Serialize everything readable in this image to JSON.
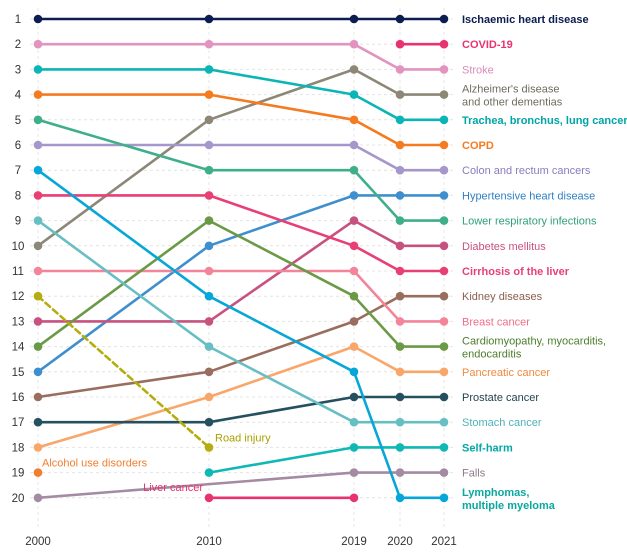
{
  "chart_data": {
    "type": "line",
    "chart_kind": "bump",
    "x": [
      2000,
      2010,
      2019,
      2020,
      2021
    ],
    "x_tick_labels": [
      "2000",
      "2010",
      "2019",
      "2020",
      "2021"
    ],
    "ranks": [
      "1",
      "2",
      "3",
      "4",
      "5",
      "6",
      "7",
      "8",
      "9",
      "10",
      "11",
      "12",
      "13",
      "14",
      "15",
      "16",
      "17",
      "18",
      "19",
      "20"
    ],
    "y_axis": "rank",
    "y_inverted": true,
    "ylim": [
      1,
      20
    ],
    "grid": true,
    "legend": "none",
    "series": [
      {
        "name": "Ischaemic heart disease",
        "label_lines": [
          "Ischaemic heart disease"
        ],
        "values": [
          1,
          1,
          1,
          1,
          1
        ],
        "color": "#0b1d51",
        "label_color": "#0b1d51",
        "bold": true
      },
      {
        "name": "COVID-19",
        "label_lines": [
          "COVID-19"
        ],
        "values": [
          null,
          null,
          null,
          2,
          2
        ],
        "color": "#e8336e",
        "label_color": "#e8336e",
        "bold": true
      },
      {
        "name": "Stroke",
        "label_lines": [
          "Stroke"
        ],
        "values": [
          2,
          2,
          2,
          3,
          3
        ],
        "color": "#e393bf",
        "label_color": "#d98bb7",
        "bold": false
      },
      {
        "name": "Alzheimer's disease and other dementias",
        "label_lines": [
          "Alzheimer's disease",
          "and other dementias"
        ],
        "values": [
          10,
          5,
          3,
          4,
          4
        ],
        "color": "#8c8777",
        "label_color": "#6f6b5e",
        "bold": false
      },
      {
        "name": "Trachea, bronchus, lung cancers",
        "label_lines": [
          "Trachea, bronchus, lung cancers"
        ],
        "values": [
          3,
          3,
          4,
          5,
          5
        ],
        "color": "#0bb5b5",
        "label_color": "#00a5a5",
        "bold": true
      },
      {
        "name": "COPD",
        "label_lines": [
          "COPD"
        ],
        "values": [
          4,
          4,
          5,
          6,
          6
        ],
        "color": "#f47b20",
        "label_color": "#f47b20",
        "bold": true
      },
      {
        "name": "Colon and rectum cancers",
        "label_lines": [
          "Colon and rectum cancers"
        ],
        "values": [
          6,
          6,
          6,
          7,
          7
        ],
        "color": "#a597cc",
        "label_color": "#8b7bbf",
        "bold": false
      },
      {
        "name": "Hypertensive heart disease",
        "label_lines": [
          "Hypertensive heart disease"
        ],
        "values": [
          15,
          10,
          8,
          8,
          8
        ],
        "color": "#3f8fcf",
        "label_color": "#2f80c6",
        "bold": false
      },
      {
        "name": "Lower respiratory infections",
        "label_lines": [
          "Lower respiratory infections"
        ],
        "values": [
          5,
          7,
          7,
          9,
          9
        ],
        "color": "#3fae8a",
        "label_color": "#2e9f78",
        "bold": false
      },
      {
        "name": "Diabetes mellitus",
        "label_lines": [
          "Diabetes mellitus"
        ],
        "values": [
          13,
          13,
          9,
          10,
          10
        ],
        "color": "#c8527f",
        "label_color": "#c8527f",
        "bold": false
      },
      {
        "name": "Cirrhosis of the liver",
        "label_lines": [
          "Cirrhosis of the liver"
        ],
        "values": [
          8,
          8,
          10,
          11,
          11
        ],
        "color": "#e83f74",
        "label_color": "#e83f74",
        "bold": true
      },
      {
        "name": "Kidney diseases",
        "label_lines": [
          "Kidney diseases"
        ],
        "values": [
          16,
          15,
          13,
          12,
          12
        ],
        "color": "#9a6e5e",
        "label_color": "#8a5e4e",
        "bold": false
      },
      {
        "name": "Breast cancer",
        "label_lines": [
          "Breast cancer"
        ],
        "values": [
          11,
          11,
          11,
          13,
          13
        ],
        "color": "#f4849a",
        "label_color": "#ef6e88",
        "bold": false
      },
      {
        "name": "Cardiomyopathy, myocarditis, endocarditis",
        "label_lines": [
          "Cardiomyopathy, myocarditis,",
          "endocarditis"
        ],
        "values": [
          14,
          9,
          12,
          14,
          14
        ],
        "color": "#6b9a46",
        "label_color": "#4c7d2c",
        "bold": false
      },
      {
        "name": "Pancreatic cancer",
        "label_lines": [
          "Pancreatic cancer"
        ],
        "values": [
          18,
          16,
          14,
          15,
          15
        ],
        "color": "#f9a66a",
        "label_color": "#f08a3e",
        "bold": false
      },
      {
        "name": "Prostate cancer",
        "label_lines": [
          "Prostate cancer"
        ],
        "values": [
          17,
          17,
          16,
          16,
          16
        ],
        "color": "#24505f",
        "label_color": "#1f3f4c",
        "bold": false
      },
      {
        "name": "Stomach cancer",
        "label_lines": [
          "Stomach cancer"
        ],
        "values": [
          9,
          14,
          17,
          17,
          17
        ],
        "color": "#67bfc4",
        "label_color": "#4fb2b8",
        "bold": false
      },
      {
        "name": "Self-harm",
        "label_lines": [
          "Self-harm"
        ],
        "values": [
          null,
          19,
          18,
          18,
          18
        ],
        "color": "#0fb8b4",
        "label_color": "#00a9a5",
        "bold": true
      },
      {
        "name": "Falls",
        "label_lines": [
          "Falls"
        ],
        "values": [
          20,
          null,
          19,
          19,
          19
        ],
        "color": "#a48ba3",
        "label_color": "#8e7a8d",
        "bold": false
      },
      {
        "name": "Lymphomas, multiple myeloma",
        "label_lines": [
          "Lymphomas,",
          "multiple myeloma"
        ],
        "values": [
          7,
          12,
          15,
          20,
          20
        ],
        "color": "#06a7d8",
        "label_color": "#0aa8a0",
        "bold": true
      },
      {
        "name": "Road injury",
        "label_lines": [
          "Road injury"
        ],
        "values": [
          12,
          18,
          null,
          null,
          null
        ],
        "color": "#b4ad0e",
        "label_color": "#a8a100",
        "bold": false,
        "dashed": true,
        "label_at": "end"
      },
      {
        "name": "Alcohol use disorders",
        "label_lines": [
          "Alcohol use disorders"
        ],
        "values": [
          19,
          null,
          null,
          null,
          null
        ],
        "color": "#f07e2d",
        "label_color": "#f07e2d",
        "bold": false,
        "label_at": "end"
      },
      {
        "name": "Liver cancer",
        "label_lines": [
          "Liver cancer"
        ],
        "values": [
          null,
          20,
          20,
          null,
          null
        ],
        "color": "#e8336e",
        "label_color": "#e8336e",
        "bold": false,
        "label_at": "start"
      }
    ]
  }
}
